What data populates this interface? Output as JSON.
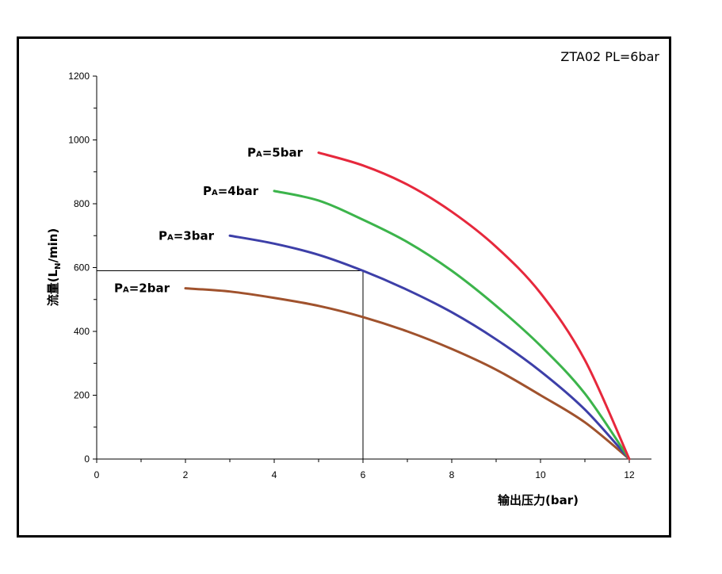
{
  "chart_data": {
    "type": "line",
    "title": "ZTA02 PL=6bar",
    "xlabel": "输出压力(bar)",
    "ylabel_main": "流量(L",
    "ylabel_sub": "N",
    "ylabel_tail": "/min)",
    "xlim": [
      0,
      12.5
    ],
    "ylim": [
      0,
      1200
    ],
    "xticks": [
      0,
      2,
      4,
      6,
      8,
      10,
      12
    ],
    "yticks": [
      0,
      200,
      400,
      600,
      800,
      1000,
      1200
    ],
    "grid": false,
    "series": [
      {
        "name_main": "P",
        "name_sub": "A",
        "name_tail": "=2bar",
        "color": "#a0522d",
        "x": [
          2,
          3,
          4,
          5,
          6,
          7,
          8,
          9,
          10,
          11,
          12
        ],
        "y": [
          535,
          525,
          505,
          480,
          445,
          400,
          345,
          280,
          200,
          115,
          0
        ]
      },
      {
        "name_main": "P",
        "name_sub": "A",
        "name_tail": "=3bar",
        "color": "#3d3fa8",
        "x": [
          3,
          4,
          5,
          6,
          7,
          8,
          9,
          10,
          11,
          12
        ],
        "y": [
          700,
          675,
          640,
          590,
          530,
          460,
          375,
          275,
          155,
          0
        ]
      },
      {
        "name_main": "P",
        "name_sub": "A",
        "name_tail": "=4bar",
        "color": "#3cb44b",
        "x": [
          4,
          5,
          6,
          7,
          8,
          9,
          10,
          11,
          12
        ],
        "y": [
          840,
          810,
          750,
          680,
          590,
          480,
          355,
          205,
          0
        ]
      },
      {
        "name_main": "P",
        "name_sub": "A",
        "name_tail": "=5bar",
        "color": "#e6283c",
        "x": [
          5,
          6,
          7,
          8,
          9,
          10,
          11,
          12
        ],
        "y": [
          960,
          920,
          860,
          775,
          665,
          520,
          310,
          0
        ]
      }
    ],
    "reference": {
      "x": 6,
      "y": 590
    }
  }
}
